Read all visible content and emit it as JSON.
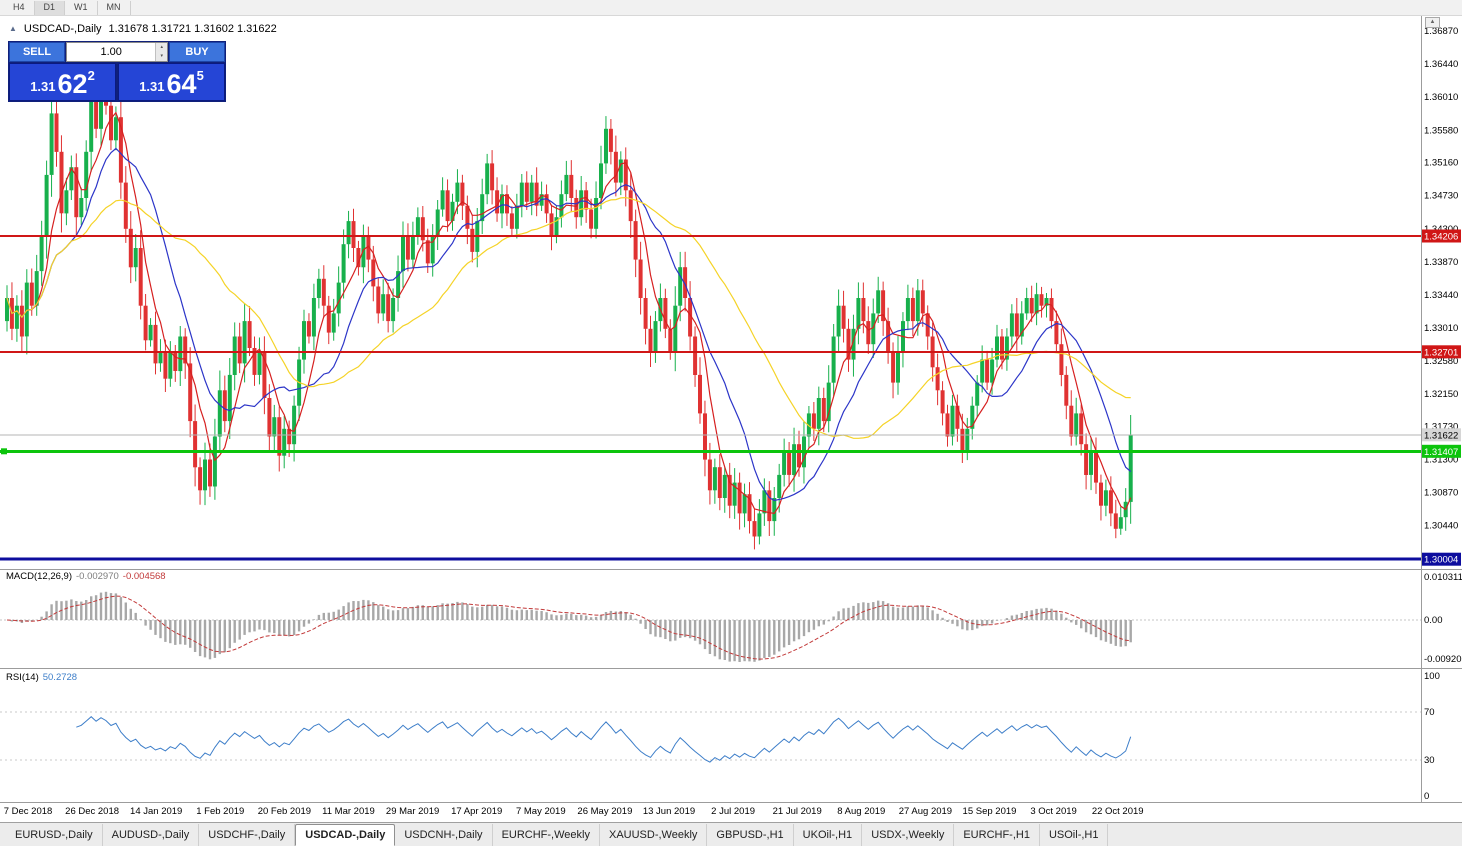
{
  "toolbar": {
    "periods": [
      "H4",
      "D1",
      "W1",
      "MN"
    ],
    "active_period": "D1"
  },
  "icons": {
    "collapse": "▲",
    "spin_up": "▴",
    "spin_down": "▾",
    "scroll_up": "▲"
  },
  "chart": {
    "title": {
      "symbol": "USDCAD-,Daily",
      "ohlc": "1.31678 1.31721 1.31602 1.31622"
    },
    "trade_panel": {
      "sell_label": "SELL",
      "buy_label": "BUY",
      "volume": "1.00",
      "bid": "1.31622",
      "ask": "1.31645",
      "sell_price": {
        "base": "1.31",
        "big": "62",
        "sup": "2"
      },
      "buy_price": {
        "base": "1.31",
        "big": "64",
        "sup": "5"
      }
    }
  },
  "chart_data": {
    "type": "candlestick",
    "symbol": "USDCAD",
    "timeframe": "Daily",
    "ohlc_last": {
      "open": 1.31678,
      "high": 1.31721,
      "low": 1.31602,
      "close": 1.31622
    },
    "price_axis_ticks": [
      "1.36870",
      "1.36440",
      "1.36010",
      "1.35580",
      "1.35160",
      "1.34730",
      "1.34300",
      "1.33870",
      "1.33440",
      "1.33010",
      "1.32580",
      "1.32150",
      "1.31730",
      "1.31300",
      "1.30870",
      "1.30440"
    ],
    "x_labels": [
      "7 Dec 2018",
      "26 Dec 2018",
      "14 Jan 2019",
      "1 Feb 2019",
      "20 Feb 2019",
      "11 Mar 2019",
      "29 Mar 2019",
      "17 Apr 2019",
      "7 May 2019",
      "26 May 2019",
      "13 Jun 2019",
      "2 Jul 2019",
      "21 Jul 2019",
      "8 Aug 2019",
      "27 Aug 2019",
      "15 Sep 2019",
      "3 Oct 2019",
      "22 Oct 2019"
    ],
    "closes": [
      1.334,
      1.33,
      1.333,
      1.329,
      1.336,
      1.333,
      1.3375,
      1.342,
      1.35,
      1.358,
      1.353,
      1.345,
      1.348,
      1.351,
      1.3445,
      1.347,
      1.353,
      1.36,
      1.356,
      1.3615,
      1.359,
      1.3545,
      1.3575,
      1.349,
      1.343,
      1.338,
      1.3405,
      1.333,
      1.3285,
      1.3305,
      1.3255,
      1.327,
      1.3235,
      1.327,
      1.3245,
      1.329,
      1.3255,
      1.318,
      1.312,
      1.309,
      1.313,
      1.3095,
      1.316,
      1.322,
      1.318,
      1.324,
      1.329,
      1.3255,
      1.331,
      1.3275,
      1.324,
      1.327,
      1.321,
      1.316,
      1.3185,
      1.3135,
      1.317,
      1.315,
      1.32,
      1.326,
      1.331,
      1.329,
      1.334,
      1.3365,
      1.333,
      1.3295,
      1.332,
      1.336,
      1.341,
      1.344,
      1.3405,
      1.338,
      1.342,
      1.339,
      1.3355,
      1.332,
      1.3345,
      1.331,
      1.334,
      1.3375,
      1.342,
      1.339,
      1.342,
      1.3445,
      1.3415,
      1.3385,
      1.342,
      1.3455,
      1.348,
      1.344,
      1.3465,
      1.349,
      1.346,
      1.343,
      1.34,
      1.344,
      1.3475,
      1.3515,
      1.348,
      1.345,
      1.3475,
      1.345,
      1.343,
      1.346,
      1.349,
      1.3465,
      1.349,
      1.346,
      1.3475,
      1.345,
      1.342,
      1.3445,
      1.3475,
      1.35,
      1.347,
      1.3445,
      1.348,
      1.3455,
      1.343,
      1.347,
      1.3515,
      1.356,
      1.353,
      1.349,
      1.352,
      1.348,
      1.344,
      1.339,
      1.334,
      1.33,
      1.327,
      1.331,
      1.334,
      1.33,
      1.327,
      1.333,
      1.338,
      1.334,
      1.329,
      1.324,
      1.319,
      1.313,
      1.309,
      1.312,
      1.308,
      1.311,
      1.307,
      1.31,
      1.306,
      1.3085,
      1.305,
      1.303,
      1.306,
      1.309,
      1.305,
      1.308,
      1.311,
      1.314,
      1.311,
      1.315,
      1.312,
      1.316,
      1.319,
      1.317,
      1.321,
      1.318,
      1.323,
      1.329,
      1.333,
      1.33,
      1.326,
      1.33,
      1.334,
      1.331,
      1.328,
      1.332,
      1.335,
      1.331,
      1.327,
      1.323,
      1.327,
      1.331,
      1.334,
      1.331,
      1.335,
      1.332,
      1.329,
      1.325,
      1.322,
      1.319,
      1.316,
      1.32,
      1.317,
      1.314,
      1.317,
      1.32,
      1.323,
      1.326,
      1.323,
      1.326,
      1.329,
      1.326,
      1.329,
      1.332,
      1.329,
      1.332,
      1.334,
      1.332,
      1.3345,
      1.333,
      1.334,
      1.331,
      1.328,
      1.324,
      1.32,
      1.316,
      1.319,
      1.315,
      1.311,
      1.314,
      1.31,
      1.307,
      1.309,
      1.306,
      1.304,
      1.3055,
      1.3075,
      1.31622
    ],
    "colors": {
      "candle_up": "#17b04c",
      "candle_down": "#e03232",
      "background": "#ffffff"
    },
    "moving_averages": [
      {
        "period": 6,
        "color": "#d62020"
      },
      {
        "period": 14,
        "color": "#2c35c8"
      },
      {
        "period": 35,
        "color": "#f5d327"
      }
    ],
    "hlines": [
      {
        "price": 1.34206,
        "label": "1.34206",
        "color": "#d01616",
        "width": 2
      },
      {
        "price": 1.32701,
        "label": "1.32701",
        "color": "#d01616",
        "width": 2
      },
      {
        "price": 1.31622,
        "label": "1.31622",
        "color": "#b4b4b4",
        "width": 1,
        "label_bg": "#d6d6d6",
        "label_fg": "#000000",
        "role": "bid-line"
      },
      {
        "price": 1.31407,
        "label": "1.31407",
        "color": "#0cc40c",
        "width": 3,
        "handle": true
      },
      {
        "price": 1.30004,
        "label": "1.30004",
        "color": "#0d0d9e",
        "width": 3
      }
    ],
    "macd": {
      "label": "MACD(12,26,9)",
      "value_main": "-0.002970",
      "value_signal": "-0.004568",
      "scale_labels": [
        "0.010311",
        "0.00",
        "-0.009203"
      ],
      "histogram_color": "#a8a8a8",
      "signal_color": "#c23a3a"
    },
    "rsi": {
      "label": "RSI(14)",
      "value": "50.2728",
      "scale": [
        "100",
        "70",
        "30",
        "0"
      ],
      "levels": [
        70,
        30
      ],
      "color": "#3d7ec9"
    }
  },
  "tabs": {
    "items": [
      {
        "label": "EURUSD-,Daily"
      },
      {
        "label": "AUDUSD-,Daily"
      },
      {
        "label": "USDCHF-,Daily"
      },
      {
        "label": "USDCAD-,Daily"
      },
      {
        "label": "USDCNH-,Daily"
      },
      {
        "label": "EURCHF-,Weekly"
      },
      {
        "label": "XAUUSD-,Weekly"
      },
      {
        "label": "GBPUSD-,H1"
      },
      {
        "label": "UKOil-,H1"
      },
      {
        "label": "USDX-,Weekly"
      },
      {
        "label": "EURCHF-,H1"
      },
      {
        "label": "USOil-,H1"
      }
    ],
    "active_index": 3
  }
}
